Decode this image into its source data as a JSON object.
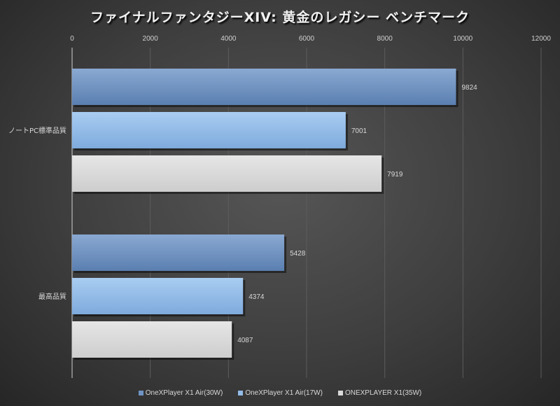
{
  "chart_data": {
    "type": "bar",
    "orientation": "horizontal",
    "title": "ファイナルファンタジーXIV: 黄金のレガシー ベンチマーク",
    "categories": [
      "ノートPC標準品質",
      "最高品質"
    ],
    "series": [
      {
        "name": "OneXPlayer X1 Air(30W)",
        "color": "#6f93c2",
        "values": [
          9824,
          5428
        ]
      },
      {
        "name": "OneXPlayer X1 Air(17W)",
        "color": "#92bbe8",
        "values": [
          7001,
          4374
        ]
      },
      {
        "name": "ONEXPLAYER X1(35W)",
        "color": "#d9d9d9",
        "values": [
          7919,
          4087
        ]
      }
    ],
    "xlim": [
      0,
      12000
    ],
    "xticks": [
      0,
      2000,
      4000,
      6000,
      8000,
      10000,
      12000
    ],
    "xaxis_position": "top",
    "grid": "vertical",
    "legend": "bottom"
  }
}
